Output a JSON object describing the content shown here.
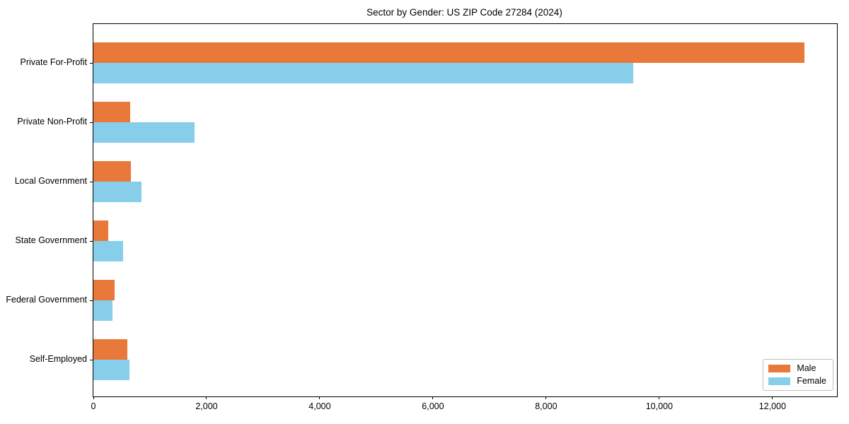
{
  "chart_data": {
    "type": "bar",
    "orientation": "horizontal",
    "title": "Sector by Gender: US ZIP Code 27284 (2024)",
    "categories": [
      "Private For-Profit",
      "Private Non-Profit",
      "Local Government",
      "State Government",
      "Federal Government",
      "Self-Employed"
    ],
    "series": [
      {
        "name": "Male",
        "color": "#E8793B",
        "values": [
          12560,
          650,
          660,
          260,
          375,
          600
        ]
      },
      {
        "name": "Female",
        "color": "#87CEEB",
        "values": [
          9540,
          1790,
          850,
          520,
          340,
          640
        ]
      }
    ],
    "xlabel": "",
    "ylabel": "",
    "xlim": [
      0,
      13140
    ],
    "x_ticks": [
      0,
      2000,
      4000,
      6000,
      8000,
      10000,
      12000
    ],
    "x_tick_labels": [
      "0",
      "2,000",
      "4,000",
      "6,000",
      "8,000",
      "10,000",
      "12,000"
    ],
    "grid": false,
    "legend_position": "lower right",
    "legend_labels": [
      "Male",
      "Female"
    ]
  }
}
